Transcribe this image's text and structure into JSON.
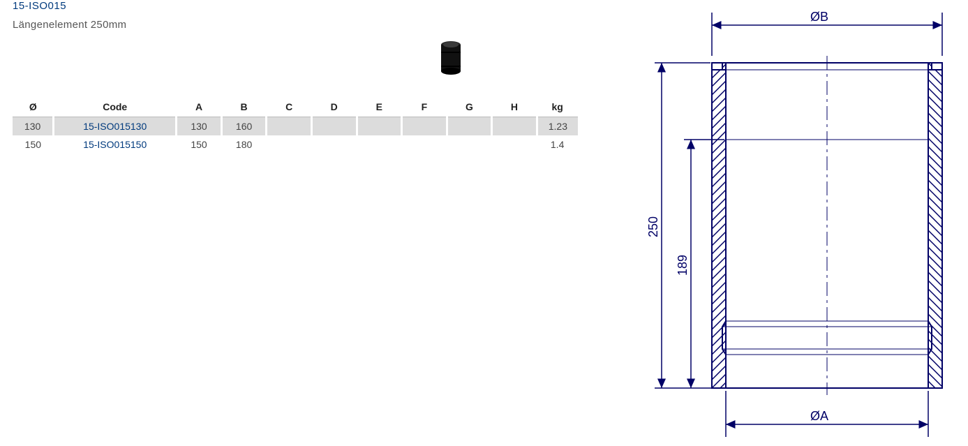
{
  "header": {
    "code": "15-ISO015",
    "description": "Längenelement 250mm"
  },
  "table": {
    "columns": [
      "Ø",
      "Code",
      "A",
      "B",
      "C",
      "D",
      "E",
      "F",
      "G",
      "H",
      "kg"
    ],
    "rows": [
      {
        "dia": "130",
        "code": "15-ISO015130",
        "A": "130",
        "B": "160",
        "C": "",
        "D": "",
        "E": "",
        "F": "",
        "G": "",
        "H": "",
        "kg": "1.23",
        "shaded": true
      },
      {
        "dia": "150",
        "code": "15-ISO015150",
        "A": "150",
        "B": "180",
        "C": "",
        "D": "",
        "E": "",
        "F": "",
        "G": "",
        "H": "",
        "kg": "1.4",
        "shaded": false
      }
    ]
  },
  "drawing": {
    "top_label": "ØB",
    "bottom_label": "ØA",
    "height_outer": "250",
    "height_inner": "189",
    "colors": {
      "line": "#000066",
      "hatch": "#000066",
      "bg": "#ffffff"
    }
  }
}
